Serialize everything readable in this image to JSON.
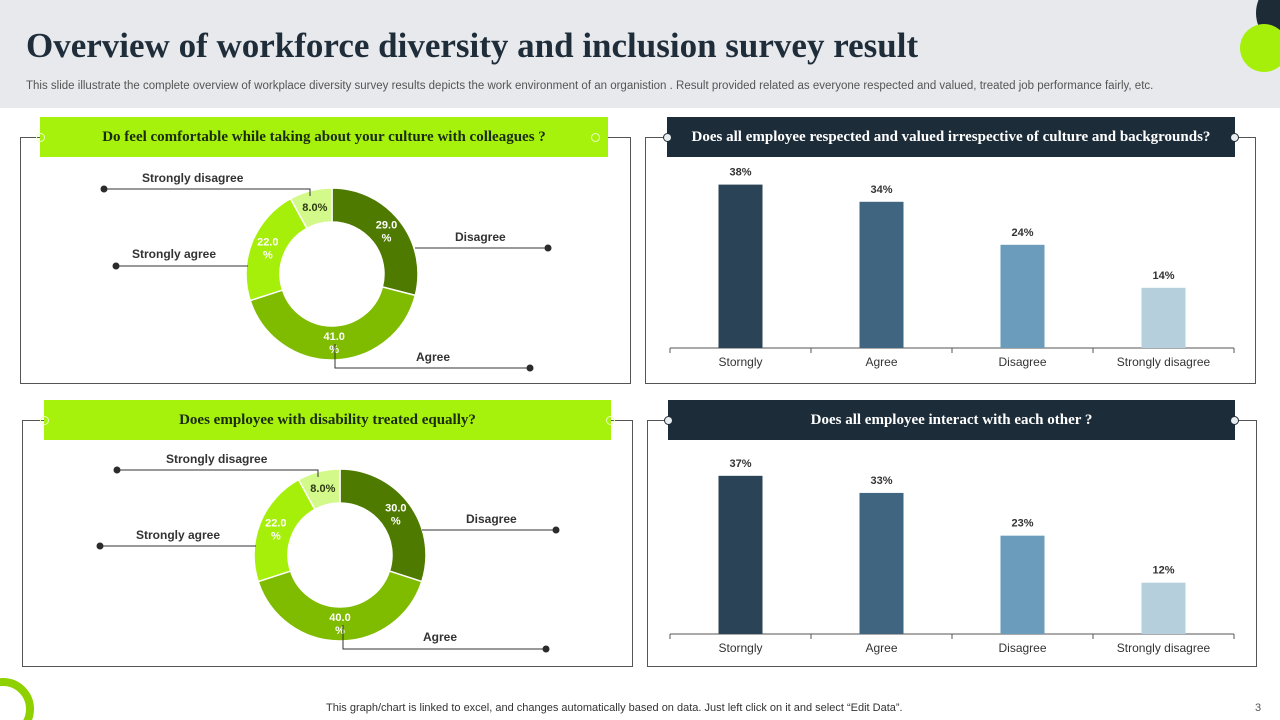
{
  "title": "Overview of workforce diversity and inclusion survey result",
  "subtitle": "This slide illustrate  the complete overview of workplace diversity survey results depicts the work environment of an organistion . Result provided related as everyone respected and valued, treated job performance fairly, etc.",
  "footer": "This graph/chart is linked to excel,  and changes automatically based on data. Just left click on it and select “Edit Data”.",
  "page_number": "3",
  "colors": {
    "green_banner": "#a6f20c",
    "dark_banner": "#1c2c38",
    "donut": [
      "#4e7a00",
      "#7fbc00",
      "#a6ef0a",
      "#d2f98a"
    ],
    "bars": [
      "#2a4357",
      "#3f6581",
      "#6b9cbc",
      "#b5cfdd"
    ]
  },
  "chart_data": [
    {
      "type": "pie",
      "variant": "donut",
      "title": "Do feel comfortable while taking about your culture with colleagues ?",
      "categories": [
        "Disagree",
        "Agree",
        "Strongly agree",
        "Strongly disagree"
      ],
      "values": [
        29.0,
        41.0,
        22.0,
        8.0
      ],
      "value_labels": [
        "29.0 %",
        "41.0 %",
        "22.0 %",
        "8.0%"
      ]
    },
    {
      "type": "bar",
      "title": "Does all employee respected and valued irrespective of culture  and backgrounds?",
      "categories": [
        "Storngly",
        "Agree",
        "Disagree",
        "Strongly disagree"
      ],
      "values": [
        38,
        34,
        24,
        14
      ],
      "value_labels": [
        "38%",
        "34%",
        "24%",
        "14%"
      ],
      "ylim": [
        0,
        40
      ]
    },
    {
      "type": "pie",
      "variant": "donut",
      "title": "Does employee with disability treated equally?",
      "categories": [
        "Disagree",
        "Agree",
        "Strongly agree",
        "Strongly disagree"
      ],
      "values": [
        30.0,
        40.0,
        22.0,
        8.0
      ],
      "value_labels": [
        "30.0 %",
        "40.0 %",
        "22.0 %",
        "8.0%"
      ]
    },
    {
      "type": "bar",
      "title": "Does all employee interact with  each other ?",
      "categories": [
        "Storngly",
        "Agree",
        "Disagree",
        "Strongly disagree"
      ],
      "values": [
        37,
        33,
        23,
        12
      ],
      "value_labels": [
        "37%",
        "33%",
        "23%",
        "12%"
      ],
      "ylim": [
        0,
        40
      ]
    }
  ]
}
